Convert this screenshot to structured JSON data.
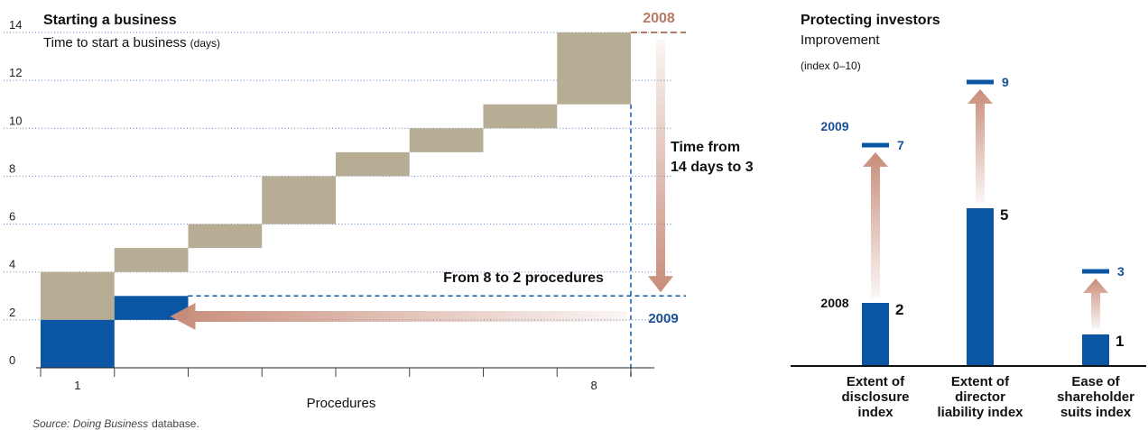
{
  "colors": {
    "tan": "#b7ad95",
    "blue": "#0b56a4",
    "arrow": "#c98d7a",
    "year2008": "#b97a65",
    "year2009": "#1a4f96",
    "grid": "#5a82b8"
  },
  "chart_data": [
    {
      "type": "bar",
      "title": "Starting a business",
      "subtitle": "Time to start a business",
      "subtitle_unit": "(days)",
      "xlabel": "Procedures",
      "x_tick_labels": [
        "1",
        "8"
      ],
      "ylim": [
        0,
        14
      ],
      "yticks": [
        "0",
        "2",
        "4",
        "6",
        "8",
        "10",
        "12",
        "14"
      ],
      "grid": "dotted horizontal",
      "series": [
        {
          "name": "2008",
          "steps": [
            {
              "procedure": 1,
              "from": 0,
              "to": 4
            },
            {
              "procedure": 2,
              "from": 4,
              "to": 5
            },
            {
              "procedure": 3,
              "from": 5,
              "to": 6
            },
            {
              "procedure": 4,
              "from": 6,
              "to": 8
            },
            {
              "procedure": 5,
              "from": 8,
              "to": 9
            },
            {
              "procedure": 6,
              "from": 9,
              "to": 10
            },
            {
              "procedure": 7,
              "from": 10,
              "to": 11
            },
            {
              "procedure": 8,
              "from": 11,
              "to": 14
            }
          ]
        },
        {
          "name": "2009",
          "steps": [
            {
              "procedure": 1,
              "from": 0,
              "to": 2
            },
            {
              "procedure": 2,
              "from": 2,
              "to": 3
            }
          ]
        }
      ],
      "annotations": {
        "year_2008": "2008",
        "year_2009": "2009",
        "procedures_change": "From 8 to 2 procedures",
        "time_change_line1": "Time from",
        "time_change_line2": "14 days to 3"
      },
      "source_italic": "Source: Doing Business",
      "source_rest": "database."
    },
    {
      "type": "bar",
      "title": "Protecting investors",
      "subtitle": "Improvement",
      "unit_note": "(index 0–10)",
      "ylim": [
        0,
        10
      ],
      "categories": [
        [
          "Extent of",
          "disclosure",
          "index"
        ],
        [
          "Extent of",
          "director",
          "liability index"
        ],
        [
          "Ease of",
          "shareholder",
          "suits index"
        ]
      ],
      "series": [
        {
          "name": "2008",
          "values": [
            2,
            5,
            1
          ],
          "labels": [
            "2",
            "5",
            "1"
          ]
        },
        {
          "name": "2009",
          "values": [
            7,
            9,
            3
          ],
          "labels": [
            "7",
            "9",
            "3"
          ]
        }
      ],
      "annotations": {
        "year_2008": "2008",
        "year_2009": "2009"
      }
    }
  ]
}
